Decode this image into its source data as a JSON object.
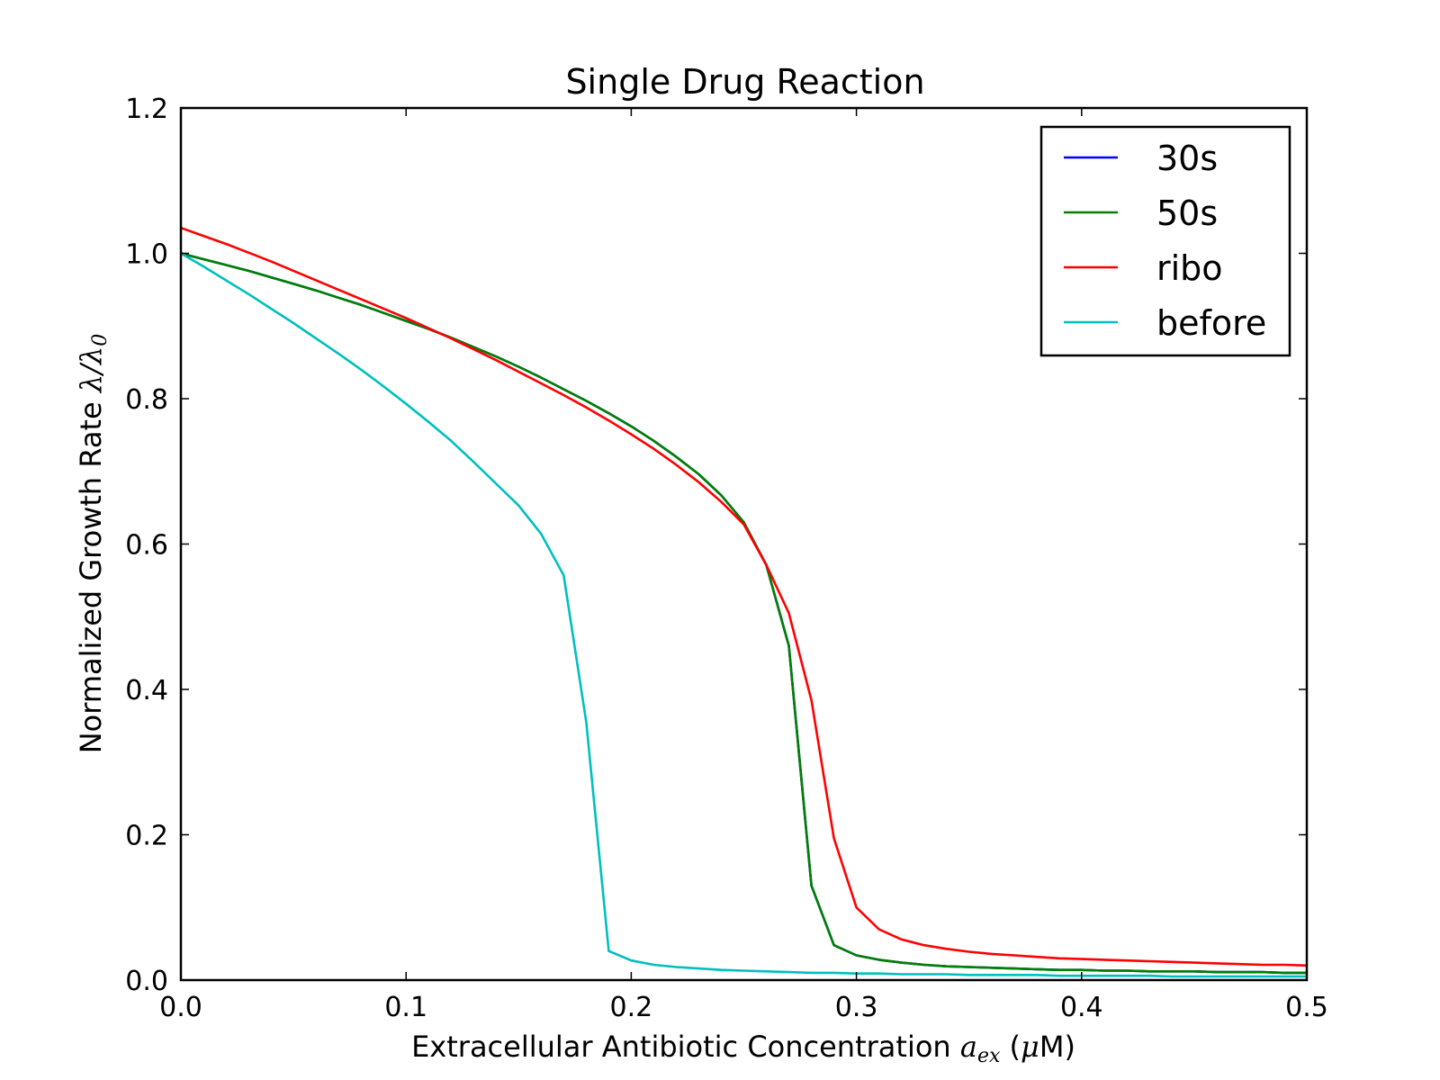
{
  "chart_data": {
    "type": "line",
    "title": "Single Drug Reaction",
    "xlabel_prefix": "Extracellular Antibiotic Concentration ",
    "xlabel_symbol": "a",
    "xlabel_subscript": "ex",
    "xlabel_suffix_open": " (",
    "xlabel_mu": "μ",
    "xlabel_suffix_close": "M)",
    "ylabel_prefix": "Normalized Growth Rate ",
    "ylabel_math": "λ/λ",
    "ylabel_subscript": "0",
    "xlim": [
      0.0,
      0.5
    ],
    "ylim": [
      0.0,
      1.2
    ],
    "xticks": [
      0.0,
      0.1,
      0.2,
      0.3,
      0.4,
      0.5
    ],
    "xtick_labels": [
      "0.0",
      "0.1",
      "0.2",
      "0.3",
      "0.4",
      "0.5"
    ],
    "yticks": [
      0.0,
      0.2,
      0.4,
      0.6,
      0.8,
      1.0,
      1.2
    ],
    "ytick_labels": [
      "0.0",
      "0.2",
      "0.4",
      "0.6",
      "0.8",
      "1.0",
      "1.2"
    ],
    "grid": false,
    "legend_position": "top-right",
    "x": [
      0.0,
      0.01,
      0.02,
      0.03,
      0.04,
      0.05,
      0.06,
      0.07,
      0.08,
      0.09,
      0.1,
      0.11,
      0.12,
      0.13,
      0.14,
      0.15,
      0.16,
      0.17,
      0.18,
      0.19,
      0.2,
      0.21,
      0.22,
      0.23,
      0.24,
      0.25,
      0.26,
      0.27,
      0.28,
      0.29,
      0.3,
      0.31,
      0.32,
      0.33,
      0.34,
      0.35,
      0.36,
      0.37,
      0.38,
      0.39,
      0.4,
      0.41,
      0.42,
      0.43,
      0.44,
      0.45,
      0.46,
      0.47,
      0.48,
      0.49,
      0.5
    ],
    "series": [
      {
        "name": "30s",
        "color": "#0000ff",
        "values": [
          1.0,
          0.992,
          0.984,
          0.976,
          0.967,
          0.958,
          0.949,
          0.939,
          0.929,
          0.918,
          0.907,
          0.896,
          0.884,
          0.871,
          0.858,
          0.844,
          0.829,
          0.813,
          0.797,
          0.78,
          0.762,
          0.742,
          0.72,
          0.696,
          0.667,
          0.63,
          0.571,
          0.46,
          0.13,
          0.048,
          0.034,
          0.028,
          0.024,
          0.021,
          0.019,
          0.018,
          0.017,
          0.016,
          0.015,
          0.014,
          0.014,
          0.013,
          0.013,
          0.012,
          0.012,
          0.012,
          0.011,
          0.011,
          0.011,
          0.01,
          0.01
        ]
      },
      {
        "name": "50s",
        "color": "#008000",
        "values": [
          1.0,
          0.992,
          0.984,
          0.976,
          0.967,
          0.958,
          0.949,
          0.939,
          0.929,
          0.918,
          0.907,
          0.896,
          0.884,
          0.871,
          0.858,
          0.844,
          0.829,
          0.813,
          0.797,
          0.78,
          0.762,
          0.742,
          0.72,
          0.696,
          0.667,
          0.63,
          0.571,
          0.46,
          0.13,
          0.048,
          0.034,
          0.028,
          0.024,
          0.021,
          0.019,
          0.018,
          0.017,
          0.016,
          0.015,
          0.014,
          0.014,
          0.013,
          0.013,
          0.012,
          0.012,
          0.012,
          0.011,
          0.011,
          0.011,
          0.01,
          0.01
        ]
      },
      {
        "name": "ribo",
        "color": "#ff0000",
        "values": [
          1.035,
          1.024,
          1.013,
          1.001,
          0.989,
          0.976,
          0.963,
          0.95,
          0.937,
          0.924,
          0.911,
          0.897,
          0.883,
          0.868,
          0.853,
          0.837,
          0.821,
          0.805,
          0.788,
          0.77,
          0.751,
          0.731,
          0.709,
          0.685,
          0.658,
          0.627,
          0.571,
          0.505,
          0.385,
          0.195,
          0.1,
          0.07,
          0.056,
          0.048,
          0.043,
          0.039,
          0.036,
          0.034,
          0.032,
          0.03,
          0.029,
          0.028,
          0.027,
          0.026,
          0.025,
          0.024,
          0.023,
          0.022,
          0.021,
          0.021,
          0.02
        ]
      },
      {
        "name": "before",
        "color": "#00bfbf",
        "values": [
          1.0,
          0.982,
          0.963,
          0.944,
          0.924,
          0.904,
          0.883,
          0.862,
          0.84,
          0.817,
          0.793,
          0.768,
          0.742,
          0.713,
          0.683,
          0.653,
          0.614,
          0.557,
          0.355,
          0.04,
          0.027,
          0.021,
          0.018,
          0.016,
          0.014,
          0.013,
          0.012,
          0.011,
          0.01,
          0.01,
          0.009,
          0.009,
          0.008,
          0.008,
          0.008,
          0.007,
          0.007,
          0.007,
          0.007,
          0.006,
          0.006,
          0.006,
          0.006,
          0.006,
          0.005,
          0.005,
          0.005,
          0.005,
          0.005,
          0.005,
          0.005
        ],
        "x": [
          0.0,
          0.01,
          0.02,
          0.03,
          0.04,
          0.05,
          0.06,
          0.07,
          0.08,
          0.09,
          0.1,
          0.11,
          0.12,
          0.13,
          0.14,
          0.15,
          0.16,
          0.17,
          0.18,
          0.19,
          0.2,
          0.21,
          0.22,
          0.23,
          0.24,
          0.25,
          0.26,
          0.27,
          0.28,
          0.29,
          0.3,
          0.31,
          0.32,
          0.33,
          0.34,
          0.35,
          0.36,
          0.37,
          0.38,
          0.39,
          0.4,
          0.41,
          0.42,
          0.43,
          0.44,
          0.45,
          0.46,
          0.47,
          0.48,
          0.49,
          0.5
        ]
      }
    ]
  }
}
